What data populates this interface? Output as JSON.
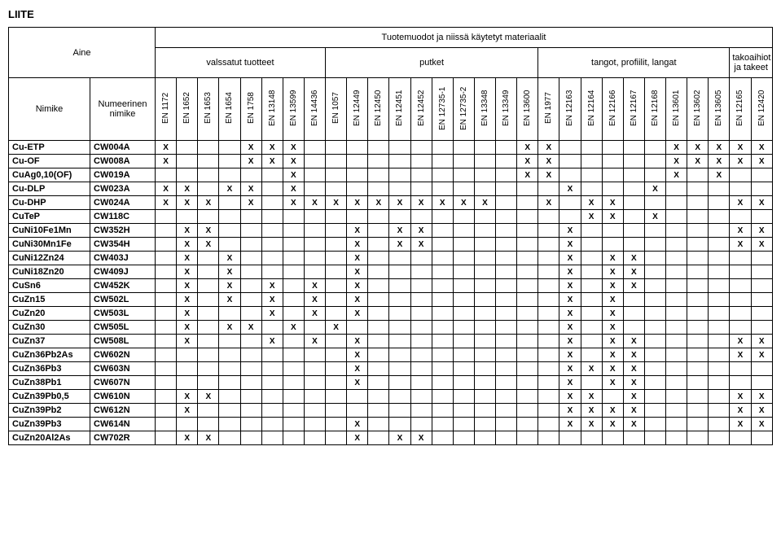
{
  "page_title": "LIITE",
  "header": {
    "aine": "Aine",
    "top_span": "Tuotemuodot ja niissä käytetyt materiaalit",
    "groups": {
      "valssatut": "valssatut tuotteet",
      "putket": "putket",
      "tangot": "tangot, profiilit, langat",
      "takoaihiot": "takoaihiot ja takeet"
    },
    "nimike": "Nimike",
    "numeerinen": "Numeerinen nimike",
    "en_cols": [
      "EN 1172",
      "EN 1652",
      "EN 1653",
      "EN 1654",
      "EN 1758",
      "EN 13148",
      "EN 13599",
      "EN 14436",
      "EN 1057",
      "EN 12449",
      "EN 12450",
      "EN 12451",
      "EN 12452",
      "EN 12735-1",
      "EN 12735-2",
      "EN 13348",
      "EN 13349",
      "EN 13600",
      "EN 1977",
      "EN 12163",
      "EN 12164",
      "EN 12166",
      "EN 12167",
      "EN 12168",
      "EN 13601",
      "EN 13602",
      "EN 13605",
      "EN 12165",
      "EN 12420"
    ]
  },
  "group_spans": {
    "valssatut": 8,
    "putket": 10,
    "tangot": 9,
    "takoaihiot": 2
  },
  "rows": [
    {
      "name": "Cu-ETP",
      "code": "CW004A",
      "x": [
        1,
        0,
        0,
        0,
        1,
        1,
        1,
        0,
        0,
        0,
        0,
        0,
        0,
        0,
        0,
        0,
        0,
        1,
        1,
        0,
        0,
        0,
        0,
        0,
        1,
        1,
        1,
        1,
        1
      ]
    },
    {
      "name": "Cu-OF",
      "code": "CW008A",
      "x": [
        1,
        0,
        0,
        0,
        1,
        1,
        1,
        0,
        0,
        0,
        0,
        0,
        0,
        0,
        0,
        0,
        0,
        1,
        1,
        0,
        0,
        0,
        0,
        0,
        1,
        1,
        1,
        1,
        1
      ]
    },
    {
      "name": "CuAg0,10(OF)",
      "code": "CW019A",
      "x": [
        0,
        0,
        0,
        0,
        0,
        0,
        1,
        0,
        0,
        0,
        0,
        0,
        0,
        0,
        0,
        0,
        0,
        1,
        1,
        0,
        0,
        0,
        0,
        0,
        1,
        0,
        1,
        0,
        0
      ]
    },
    {
      "name": "Cu-DLP",
      "code": "CW023A",
      "x": [
        1,
        1,
        0,
        1,
        1,
        0,
        1,
        0,
        0,
        0,
        0,
        0,
        0,
        0,
        0,
        0,
        0,
        0,
        0,
        1,
        0,
        0,
        0,
        1,
        0,
        0,
        0,
        0,
        0
      ]
    },
    {
      "name": "Cu-DHP",
      "code": "CW024A",
      "x": [
        1,
        1,
        1,
        0,
        1,
        0,
        1,
        1,
        1,
        1,
        1,
        1,
        1,
        1,
        1,
        1,
        0,
        0,
        1,
        0,
        1,
        1,
        0,
        0,
        0,
        0,
        0,
        1,
        1
      ]
    },
    {
      "name": "CuTeP",
      "code": "CW118C",
      "x": [
        0,
        0,
        0,
        0,
        0,
        0,
        0,
        0,
        0,
        0,
        0,
        0,
        0,
        0,
        0,
        0,
        0,
        0,
        0,
        0,
        1,
        1,
        0,
        1,
        0,
        0,
        0,
        0,
        0
      ]
    },
    {
      "name": "CuNi10Fe1Mn",
      "code": "CW352H",
      "x": [
        0,
        1,
        1,
        0,
        0,
        0,
        0,
        0,
        0,
        1,
        0,
        1,
        1,
        0,
        0,
        0,
        0,
        0,
        0,
        1,
        0,
        0,
        0,
        0,
        0,
        0,
        0,
        1,
        1
      ]
    },
    {
      "name": "CuNi30Mn1Fe",
      "code": "CW354H",
      "x": [
        0,
        1,
        1,
        0,
        0,
        0,
        0,
        0,
        0,
        1,
        0,
        1,
        1,
        0,
        0,
        0,
        0,
        0,
        0,
        1,
        0,
        0,
        0,
        0,
        0,
        0,
        0,
        1,
        1
      ]
    },
    {
      "name": "CuNi12Zn24",
      "code": "CW403J",
      "x": [
        0,
        1,
        0,
        1,
        0,
        0,
        0,
        0,
        0,
        1,
        0,
        0,
        0,
        0,
        0,
        0,
        0,
        0,
        0,
        1,
        0,
        1,
        1,
        0,
        0,
        0,
        0,
        0,
        0
      ]
    },
    {
      "name": "CuNi18Zn20",
      "code": "CW409J",
      "x": [
        0,
        1,
        0,
        1,
        0,
        0,
        0,
        0,
        0,
        1,
        0,
        0,
        0,
        0,
        0,
        0,
        0,
        0,
        0,
        1,
        0,
        1,
        1,
        0,
        0,
        0,
        0,
        0,
        0
      ]
    },
    {
      "name": "CuSn6",
      "code": "CW452K",
      "x": [
        0,
        1,
        0,
        1,
        0,
        1,
        0,
        1,
        0,
        1,
        0,
        0,
        0,
        0,
        0,
        0,
        0,
        0,
        0,
        1,
        0,
        1,
        1,
        0,
        0,
        0,
        0,
        0,
        0
      ]
    },
    {
      "name": "CuZn15",
      "code": "CW502L",
      "x": [
        0,
        1,
        0,
        1,
        0,
        1,
        0,
        1,
        0,
        1,
        0,
        0,
        0,
        0,
        0,
        0,
        0,
        0,
        0,
        1,
        0,
        1,
        0,
        0,
        0,
        0,
        0,
        0,
        0
      ]
    },
    {
      "name": "CuZn20",
      "code": "CW503L",
      "x": [
        0,
        1,
        0,
        0,
        0,
        1,
        0,
        1,
        0,
        1,
        0,
        0,
        0,
        0,
        0,
        0,
        0,
        0,
        0,
        1,
        0,
        1,
        0,
        0,
        0,
        0,
        0,
        0,
        0
      ]
    },
    {
      "name": "CuZn30",
      "code": "CW505L",
      "x": [
        0,
        1,
        0,
        1,
        1,
        0,
        1,
        0,
        1,
        0,
        0,
        0,
        0,
        0,
        0,
        0,
        0,
        0,
        0,
        1,
        0,
        1,
        0,
        0,
        0,
        0,
        0,
        0,
        0
      ]
    },
    {
      "name": "CuZn37",
      "code": "CW508L",
      "x": [
        0,
        1,
        0,
        0,
        0,
        1,
        0,
        1,
        0,
        1,
        0,
        0,
        0,
        0,
        0,
        0,
        0,
        0,
        0,
        1,
        0,
        1,
        1,
        0,
        0,
        0,
        0,
        1,
        1
      ]
    },
    {
      "name": "CuZn36Pb2As",
      "code": "CW602N",
      "x": [
        0,
        0,
        0,
        0,
        0,
        0,
        0,
        0,
        0,
        1,
        0,
        0,
        0,
        0,
        0,
        0,
        0,
        0,
        0,
        1,
        0,
        1,
        1,
        0,
        0,
        0,
        0,
        1,
        1
      ]
    },
    {
      "name": "CuZn36Pb3",
      "code": "CW603N",
      "x": [
        0,
        0,
        0,
        0,
        0,
        0,
        0,
        0,
        0,
        1,
        0,
        0,
        0,
        0,
        0,
        0,
        0,
        0,
        0,
        1,
        1,
        1,
        1,
        0,
        0,
        0,
        0,
        0,
        0
      ]
    },
    {
      "name": "CuZn38Pb1",
      "code": "CW607N",
      "x": [
        0,
        0,
        0,
        0,
        0,
        0,
        0,
        0,
        0,
        1,
        0,
        0,
        0,
        0,
        0,
        0,
        0,
        0,
        0,
        1,
        0,
        1,
        1,
        0,
        0,
        0,
        0,
        0,
        0
      ]
    },
    {
      "name": "CuZn39Pb0,5",
      "code": "CW610N",
      "x": [
        0,
        1,
        1,
        0,
        0,
        0,
        0,
        0,
        0,
        0,
        0,
        0,
        0,
        0,
        0,
        0,
        0,
        0,
        0,
        1,
        1,
        0,
        1,
        0,
        0,
        0,
        0,
        1,
        1
      ]
    },
    {
      "name": "CuZn39Pb2",
      "code": "CW612N",
      "x": [
        0,
        1,
        0,
        0,
        0,
        0,
        0,
        0,
        0,
        0,
        0,
        0,
        0,
        0,
        0,
        0,
        0,
        0,
        0,
        1,
        1,
        1,
        1,
        0,
        0,
        0,
        0,
        1,
        1
      ]
    },
    {
      "name": "CuZn39Pb3",
      "code": "CW614N",
      "x": [
        0,
        0,
        0,
        0,
        0,
        0,
        0,
        0,
        0,
        1,
        0,
        0,
        0,
        0,
        0,
        0,
        0,
        0,
        0,
        1,
        1,
        1,
        1,
        0,
        0,
        0,
        0,
        1,
        1
      ]
    },
    {
      "name": "CuZn20Al2As",
      "code": "CW702R",
      "x": [
        0,
        1,
        1,
        0,
        0,
        0,
        0,
        0,
        0,
        1,
        0,
        1,
        1,
        0,
        0,
        0,
        0,
        0,
        0,
        0,
        0,
        0,
        0,
        0,
        0,
        0,
        0,
        0,
        0
      ]
    }
  ]
}
